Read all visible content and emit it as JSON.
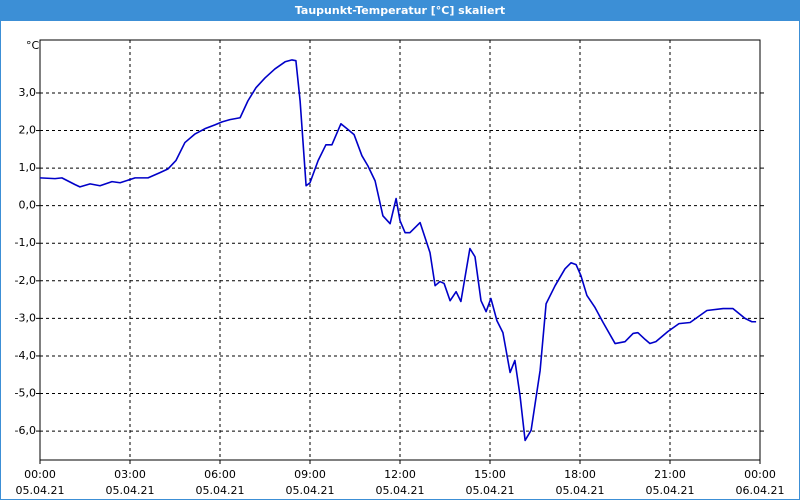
{
  "chart_data": {
    "type": "line",
    "title": "Taupunkt-Temperatur [°C] skaliert",
    "y_unit": "°C",
    "xlim": [
      0,
      24
    ],
    "xticks": [
      {
        "value": 0,
        "label": "00:00",
        "date": "05.04.21"
      },
      {
        "value": 3,
        "label": "03:00",
        "date": "05.04.21"
      },
      {
        "value": 6,
        "label": "06:00",
        "date": "05.04.21"
      },
      {
        "value": 9,
        "label": "09:00",
        "date": "05.04.21"
      },
      {
        "value": 12,
        "label": "12:00",
        "date": "05.04.21"
      },
      {
        "value": 15,
        "label": "15:00",
        "date": "05.04.21"
      },
      {
        "value": 18,
        "label": "18:00",
        "date": "05.04.21"
      },
      {
        "value": 21,
        "label": "21:00",
        "date": "05.04.21"
      },
      {
        "value": 24,
        "label": "00:00",
        "date": "06.04.21"
      }
    ],
    "ylim": [
      -6.77,
      4.41
    ],
    "yticks": [
      {
        "value": -6,
        "label": "-6,0"
      },
      {
        "value": -5,
        "label": "-5,0"
      },
      {
        "value": -4,
        "label": "-4,0"
      },
      {
        "value": -3,
        "label": "-3,0"
      },
      {
        "value": -2,
        "label": "-2,0"
      },
      {
        "value": -1,
        "label": "-1,0"
      },
      {
        "value": 0,
        "label": "0,0"
      },
      {
        "value": 1,
        "label": "1,0"
      },
      {
        "value": 2,
        "label": "2,0"
      },
      {
        "value": 3,
        "label": "3,0"
      }
    ],
    "grid": true,
    "x": [
      0,
      0.5,
      0.73,
      1.17,
      1.33,
      1.67,
      2.0,
      2.4,
      2.67,
      3.17,
      3.6,
      4.0,
      4.27,
      4.53,
      4.83,
      5.17,
      5.5,
      5.83,
      6.07,
      6.33,
      6.67,
      6.93,
      7.2,
      7.5,
      7.83,
      8.17,
      8.4,
      8.53,
      8.67,
      8.87,
      9.0,
      9.27,
      9.53,
      9.73,
      10.03,
      10.2,
      10.47,
      10.73,
      10.93,
      11.17,
      11.43,
      11.67,
      11.87,
      12.0,
      12.17,
      12.33,
      12.67,
      13.0,
      13.17,
      13.33,
      13.47,
      13.67,
      13.87,
      14.03,
      14.33,
      14.5,
      14.7,
      14.87,
      15.03,
      15.23,
      15.43,
      15.67,
      15.83,
      16.0,
      16.17,
      16.37,
      16.67,
      16.87,
      17.17,
      17.5,
      17.7,
      17.87,
      18.03,
      18.23,
      18.5,
      18.77,
      19.17,
      19.5,
      19.77,
      19.93,
      20.17,
      20.33,
      20.53,
      20.93,
      21.3,
      21.67,
      22.23,
      22.77,
      23.1,
      23.5,
      23.73,
      23.87
    ],
    "series": [
      {
        "name": "Taupunkt-Temperatur",
        "color": "#0000c8",
        "values": [
          0.74,
          0.72,
          0.74,
          0.56,
          0.5,
          0.58,
          0.53,
          0.64,
          0.61,
          0.74,
          0.74,
          0.88,
          0.98,
          1.2,
          1.68,
          1.91,
          2.05,
          2.15,
          2.23,
          2.29,
          2.34,
          2.79,
          3.14,
          3.4,
          3.64,
          3.83,
          3.88,
          3.86,
          2.79,
          0.53,
          0.61,
          1.2,
          1.62,
          1.62,
          2.18,
          2.07,
          1.89,
          1.33,
          1.06,
          0.66,
          -0.27,
          -0.48,
          0.19,
          -0.4,
          -0.72,
          -0.72,
          -0.45,
          -1.25,
          -2.13,
          -2.02,
          -2.07,
          -2.53,
          -2.29,
          -2.55,
          -1.14,
          -1.36,
          -2.53,
          -2.82,
          -2.47,
          -3.06,
          -3.38,
          -4.44,
          -4.12,
          -5.05,
          -6.25,
          -5.98,
          -4.39,
          -2.61,
          -2.13,
          -1.68,
          -1.52,
          -1.57,
          -1.86,
          -2.39,
          -2.71,
          -3.11,
          -3.67,
          -3.62,
          -3.4,
          -3.38,
          -3.56,
          -3.67,
          -3.62,
          -3.35,
          -3.14,
          -3.11,
          -2.79,
          -2.74,
          -2.74,
          -3.0,
          -3.09,
          -3.09
        ]
      }
    ]
  }
}
